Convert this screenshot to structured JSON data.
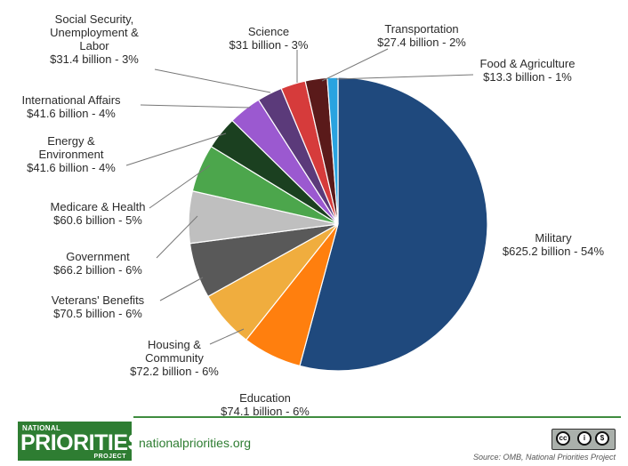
{
  "chart_data": {
    "type": "pie",
    "unit": "billion",
    "slices": [
      {
        "name": "Military",
        "value": 625.2,
        "pct": 54,
        "color": "#1f497d",
        "lines": [
          "Military",
          "$625.2 billion - 54%"
        ]
      },
      {
        "name": "Education",
        "value": 74.1,
        "pct": 6,
        "color": "#ff7f0e",
        "lines": [
          "Education",
          "$74.1 billion - 6%"
        ]
      },
      {
        "name": "Housing & Community",
        "value": 72.2,
        "pct": 6,
        "color": "#f0ad3e",
        "lines": [
          "Housing &",
          "Community",
          "$72.2 billion - 6%"
        ]
      },
      {
        "name": "Veterans' Benefits",
        "value": 70.5,
        "pct": 6,
        "color": "#595959",
        "lines": [
          "Veterans' Benefits",
          "$70.5 billion - 6%"
        ]
      },
      {
        "name": "Government",
        "value": 66.2,
        "pct": 6,
        "color": "#bfbfbf",
        "lines": [
          "Government",
          "$66.2 billion - 6%"
        ]
      },
      {
        "name": "Medicare & Health",
        "value": 60.6,
        "pct": 5,
        "color": "#4ca64c",
        "lines": [
          "Medicare & Health",
          "$60.6 billion - 5%"
        ]
      },
      {
        "name": "Energy & Environment",
        "value": 41.6,
        "pct": 4,
        "color": "#1b4020",
        "lines": [
          "Energy &",
          "Environment",
          "$41.6 billion - 4%"
        ]
      },
      {
        "name": "International Affairs",
        "value": 41.6,
        "pct": 4,
        "color": "#9b59d0",
        "lines": [
          "International Affairs",
          "$41.6 billion - 4%"
        ]
      },
      {
        "name": "Social Security, Unemployment & Labor",
        "value": 31.4,
        "pct": 3,
        "color": "#5b3a7a",
        "lines": [
          "Social Security,",
          "Unemployment &",
          "Labor",
          "$31.4 billion - 3%"
        ]
      },
      {
        "name": "Science",
        "value": 31,
        "pct": 3,
        "color": "#d63b3b",
        "lines": [
          "Science",
          "$31 billion - 3%"
        ]
      },
      {
        "name": "Transportation",
        "value": 27.4,
        "pct": 2,
        "color": "#5a1a1a",
        "lines": [
          "Transportation",
          "$27.4 billion - 2%"
        ]
      },
      {
        "name": "Food & Agriculture",
        "value": 13.3,
        "pct": 1,
        "color": "#29a3e0",
        "lines": [
          "Food & Agriculture",
          "$13.3 billion - 1%"
        ]
      }
    ]
  },
  "footer": {
    "logo_top": "NATIONAL",
    "logo_main": "PRIORITIES",
    "logo_bottom": "PROJECT",
    "site": "nationalpriorities.org",
    "source": "Source: OMB, National Priorities Project",
    "license_icons": [
      "cc-icon",
      "by-icon",
      "nc-icon"
    ]
  }
}
